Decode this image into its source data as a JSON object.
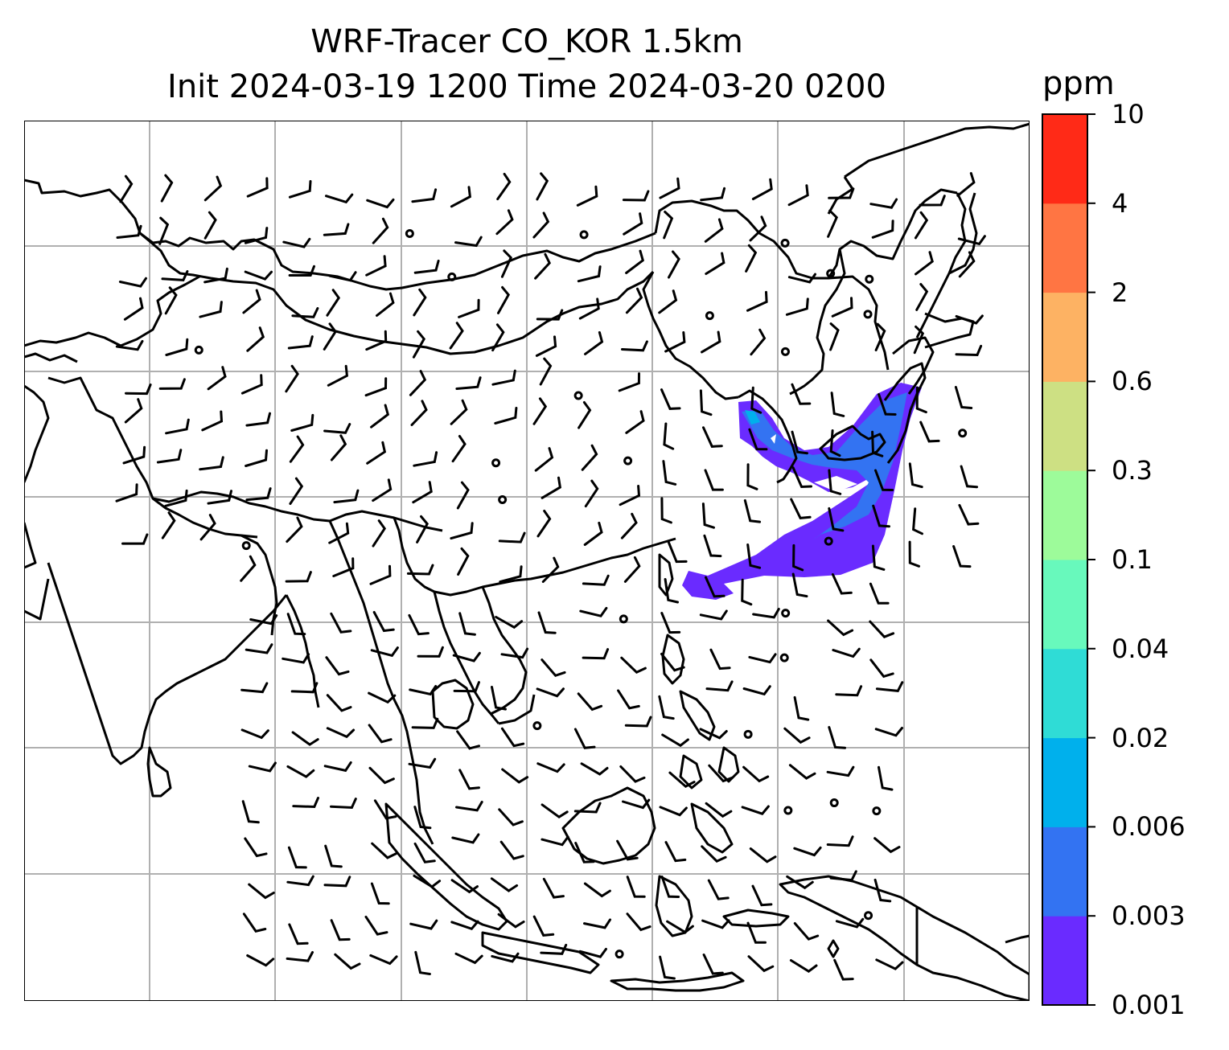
{
  "title": {
    "line1": "WRF-Tracer CO_KOR 1.5km",
    "line2": "Init 2024-03-19 1200 Time 2024-03-20 0200"
  },
  "colorbar": {
    "unit": "ppm",
    "ticks": [
      "0.001",
      "0.003",
      "0.006",
      "0.02",
      "0.04",
      "0.1",
      "0.3",
      "0.6",
      "2",
      "4",
      "10"
    ],
    "colors": [
      "#6a2bff",
      "#3373f2",
      "#00b0ec",
      "#2fdcd6",
      "#68f9bc",
      "#9dfb9a",
      "#cde083",
      "#fdb263",
      "#ff7543",
      "#ff2a17"
    ]
  },
  "map": {
    "line_color": "#000000",
    "grid_color": "#b0b0b0",
    "plume_colors": {
      "outer": "#6a2bff",
      "core": "#3373f2",
      "peak": "#00b0ec"
    }
  }
}
